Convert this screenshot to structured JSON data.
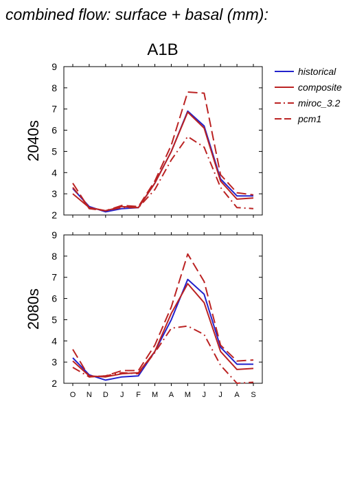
{
  "title": "combined flow: surface + basal (mm):",
  "scenario": "A1B",
  "legend": {
    "placement": "top-right",
    "items": [
      {
        "label": "historical",
        "color": "#2222cc",
        "dash": "solid"
      },
      {
        "label": "composite",
        "color": "#bb2222",
        "dash": "solid"
      },
      {
        "label": "miroc_3.2",
        "color": "#bb2222",
        "dash": "dashdot"
      },
      {
        "label": "pcm1",
        "color": "#bb2222",
        "dash": "dash"
      }
    ]
  },
  "chart_data": [
    {
      "type": "line",
      "ylabel": "2040s",
      "categories": [
        "O",
        "N",
        "D",
        "J",
        "F",
        "M",
        "A",
        "M",
        "J",
        "J",
        "A",
        "S"
      ],
      "ylim": [
        2,
        9
      ],
      "yticks": [
        2,
        3,
        4,
        5,
        6,
        7,
        8,
        9
      ],
      "series": [
        {
          "name": "historical",
          "color": "#2222cc",
          "dash": "solid",
          "values": [
            3.25,
            2.4,
            2.15,
            2.3,
            2.35,
            3.5,
            5.0,
            6.9,
            6.2,
            3.7,
            2.9,
            2.9
          ]
        },
        {
          "name": "composite",
          "color": "#bb2222",
          "dash": "solid",
          "values": [
            3.0,
            2.35,
            2.2,
            2.4,
            2.35,
            3.5,
            5.0,
            6.85,
            6.1,
            3.6,
            2.75,
            2.8
          ]
        },
        {
          "name": "miroc_3.2",
          "color": "#bb2222",
          "dash": "dashdot",
          "values": [
            3.3,
            2.35,
            2.2,
            2.35,
            2.35,
            3.2,
            4.6,
            5.7,
            5.2,
            3.3,
            2.35,
            2.3
          ]
        },
        {
          "name": "pcm1",
          "color": "#bb2222",
          "dash": "dash",
          "values": [
            3.5,
            2.3,
            2.2,
            2.45,
            2.4,
            3.6,
            5.3,
            7.8,
            7.75,
            3.9,
            3.05,
            2.95
          ]
        }
      ]
    },
    {
      "type": "line",
      "ylabel": "2080s",
      "categories": [
        "O",
        "N",
        "D",
        "J",
        "F",
        "M",
        "A",
        "M",
        "J",
        "J",
        "A",
        "S"
      ],
      "ylim": [
        2,
        9
      ],
      "yticks": [
        2,
        3,
        4,
        5,
        6,
        7,
        8,
        9
      ],
      "series": [
        {
          "name": "historical",
          "color": "#2222cc",
          "dash": "solid",
          "values": [
            3.2,
            2.4,
            2.15,
            2.3,
            2.35,
            3.5,
            5.0,
            6.9,
            6.2,
            3.7,
            2.9,
            2.9
          ]
        },
        {
          "name": "composite",
          "color": "#bb2222",
          "dash": "solid",
          "values": [
            3.05,
            2.35,
            2.3,
            2.45,
            2.5,
            3.5,
            5.3,
            6.7,
            5.8,
            3.5,
            2.65,
            2.7
          ]
        },
        {
          "name": "miroc_3.2",
          "color": "#bb2222",
          "dash": "dashdot",
          "values": [
            2.75,
            2.3,
            2.35,
            2.5,
            2.45,
            3.45,
            4.6,
            4.7,
            4.3,
            2.85,
            2.0,
            2.05
          ]
        },
        {
          "name": "pcm1",
          "color": "#bb2222",
          "dash": "dash",
          "values": [
            3.6,
            2.3,
            2.35,
            2.6,
            2.6,
            3.8,
            5.6,
            8.1,
            6.8,
            3.8,
            3.05,
            3.1
          ]
        }
      ]
    }
  ]
}
